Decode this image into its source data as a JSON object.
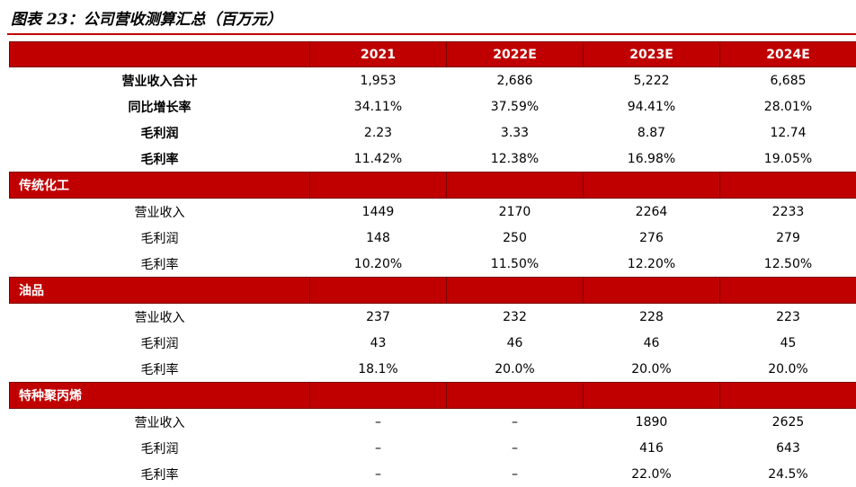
{
  "title": "图表 23：公司营收测算汇总（百万元）",
  "colors": {
    "accent_red": "#c00000"
  },
  "table": {
    "headers": [
      "",
      "2021",
      "2022E",
      "2023E",
      "2024E"
    ],
    "summary_rows": [
      {
        "label": "营业收入合计",
        "values": [
          "1,953",
          "2,686",
          "5,222",
          "6,685"
        ]
      },
      {
        "label": "同比增长率",
        "values": [
          "34.11%",
          "37.59%",
          "94.41%",
          "28.01%"
        ]
      },
      {
        "label": "毛利润",
        "values": [
          "2.23",
          "3.33",
          "8.87",
          "12.74"
        ]
      },
      {
        "label": "毛利率",
        "values": [
          "11.42%",
          "12.38%",
          "16.98%",
          "19.05%"
        ]
      }
    ],
    "sections": [
      {
        "name": "传统化工",
        "rows": [
          {
            "label": "营业收入",
            "values": [
              "1449",
              "2170",
              "2264",
              "2233"
            ]
          },
          {
            "label": "毛利润",
            "values": [
              "148",
              "250",
              "276",
              "279"
            ]
          },
          {
            "label": "毛利率",
            "values": [
              "10.20%",
              "11.50%",
              "12.20%",
              "12.50%"
            ]
          }
        ]
      },
      {
        "name": "油品",
        "rows": [
          {
            "label": "营业收入",
            "values": [
              "237",
              "232",
              "228",
              "223"
            ]
          },
          {
            "label": "毛利润",
            "values": [
              "43",
              "46",
              "46",
              "45"
            ]
          },
          {
            "label": "毛利率",
            "values": [
              "18.1%",
              "20.0%",
              "20.0%",
              "20.0%"
            ]
          }
        ]
      },
      {
        "name": "特种聚丙烯",
        "rows": [
          {
            "label": "营业收入",
            "values": [
              "–",
              "–",
              "1890",
              "2625"
            ]
          },
          {
            "label": "毛利润",
            "values": [
              "–",
              "–",
              "416",
              "643"
            ]
          },
          {
            "label": "毛利率",
            "values": [
              "–",
              "–",
              "22.0%",
              "24.5%"
            ]
          }
        ]
      }
    ]
  }
}
